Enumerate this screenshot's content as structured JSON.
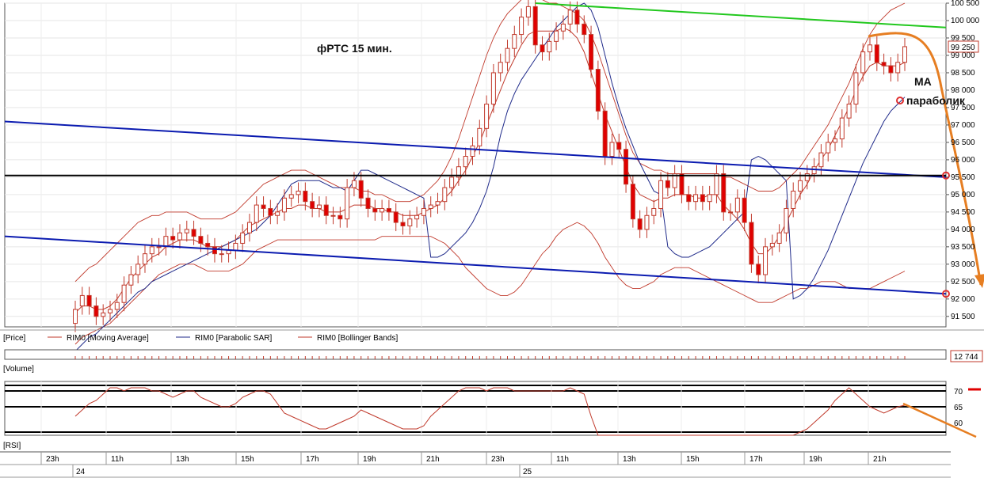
{
  "colors": {
    "up_candle": "#ffffff",
    "down_candle": "#e00000",
    "moving_average": "#c0392b",
    "parabolic_sar": "#1f2a8a",
    "bollinger": "#c0392b",
    "trend_blue": "#0b1bb0",
    "trend_green": "#22c81e",
    "forecast": "#e67e22",
    "level_line": "#000000",
    "rsi_line": "#c0392b"
  },
  "panels": {
    "price_label": "[Price]",
    "volume_label": "[Volume]",
    "rsi_label": "[RSI]",
    "volume_value": "12 744"
  },
  "legend": [
    {
      "label": "RIM0 [Moving Average]",
      "icon": "red-line-icon"
    },
    {
      "label": "RIM0 [Parabolic SAR]",
      "icon": "blue-line-icon"
    },
    {
      "label": "RIM0 [Bollinger Bands]",
      "icon": "red-line-icon"
    }
  ],
  "annotations": {
    "title": "фРТС  15 мин.",
    "ma": "MA",
    "parabolic": "параболик"
  },
  "time_axis": {
    "hours": [
      "23h",
      "11h",
      "13h",
      "15h",
      "17h",
      "19h",
      "21h",
      "23h",
      "11h",
      "13h",
      "15h",
      "17h",
      "19h",
      "21h"
    ],
    "days": [
      "24",
      "25"
    ]
  },
  "chart_data": [
    {
      "type": "candlestick",
      "name": "price",
      "ylim": [
        91200,
        100500
      ],
      "y_ticks": [
        91500,
        92000,
        92500,
        93000,
        93500,
        94000,
        94500,
        95000,
        95500,
        96000,
        96500,
        97000,
        97500,
        98000,
        98500,
        99000,
        99500,
        100000,
        100500
      ],
      "y_tick_labels": [
        "91 500",
        "92 000",
        "92 500",
        "93 000",
        "93 500",
        "94 000",
        "94 500",
        "95 000",
        "95 500",
        "96 000",
        "96 500",
        "97 000",
        "97 500",
        "98 000",
        "98 500",
        "99 000",
        "99 500",
        "100 000",
        "100 500"
      ],
      "last_price": 99250,
      "last_price_label": "99 250",
      "closes": [
        91700,
        92100,
        91800,
        91500,
        91600,
        91700,
        91900,
        92400,
        92700,
        93000,
        93300,
        93500,
        93500,
        93800,
        93700,
        93900,
        94000,
        93800,
        93600,
        93500,
        93300,
        93300,
        93400,
        93600,
        93900,
        94200,
        94700,
        94600,
        94400,
        94500,
        94900,
        95000,
        95100,
        94800,
        94600,
        94700,
        94400,
        94400,
        94300,
        95200,
        95400,
        94900,
        94600,
        94500,
        94600,
        94500,
        94200,
        94100,
        94300,
        94400,
        94600,
        94700,
        94800,
        95200,
        95500,
        95800,
        96100,
        96400,
        96900,
        97600,
        98500,
        98800,
        99200,
        99600,
        100100,
        100400,
        99300,
        99100,
        99400,
        99700,
        99900,
        100300,
        99900,
        99600,
        98600,
        97400,
        96100,
        96500,
        96300,
        95300,
        94300,
        94000,
        94400,
        94600,
        95400,
        95200,
        95600,
        95000,
        94800,
        95000,
        94800,
        95000,
        95600,
        94500,
        94500,
        94900,
        94200,
        93000,
        92700,
        93500,
        93600,
        93900,
        94600,
        95100,
        95400,
        95600,
        95800,
        96200,
        96500,
        96600,
        97200,
        97600,
        98500,
        99100,
        99300,
        98800,
        98700,
        98500,
        98800,
        99250
      ],
      "opens": [
        91300,
        91800,
        92100,
        91800,
        91500,
        91600,
        91700,
        91900,
        92400,
        92700,
        93000,
        93300,
        93500,
        93500,
        93800,
        93700,
        93900,
        94000,
        93800,
        93600,
        93500,
        93300,
        93300,
        93400,
        93600,
        93900,
        94200,
        94700,
        94600,
        94400,
        94500,
        94900,
        95000,
        95100,
        94800,
        94600,
        94700,
        94400,
        94400,
        94300,
        95200,
        95400,
        94900,
        94600,
        94500,
        94600,
        94500,
        94200,
        94100,
        94300,
        94400,
        94600,
        94700,
        94800,
        95200,
        95500,
        95800,
        96100,
        96400,
        96900,
        97600,
        98500,
        98800,
        99200,
        99600,
        100100,
        100400,
        99300,
        99100,
        99400,
        99700,
        99900,
        100300,
        99900,
        99600,
        98600,
        97400,
        96100,
        96500,
        96300,
        95300,
        94300,
        94000,
        94400,
        94600,
        95400,
        95200,
        95600,
        95000,
        94800,
        95000,
        94800,
        95000,
        95600,
        94500,
        94500,
        94900,
        94200,
        93000,
        92700,
        93500,
        93600,
        93900,
        94600,
        95100,
        95400,
        95600,
        95800,
        96200,
        96500,
        96600,
        97200,
        97600,
        98500,
        99100,
        99300,
        98800,
        98700,
        98500,
        98800
      ],
      "moving_average": [
        91600,
        91800,
        91800,
        91700,
        91700,
        91800,
        92000,
        92300,
        92600,
        92800,
        93000,
        93200,
        93300,
        93500,
        93600,
        93700,
        93700,
        93700,
        93600,
        93500,
        93500,
        93500,
        93600,
        93700,
        93900,
        94100,
        94200,
        94300,
        94400,
        94500,
        94600,
        94600,
        94700,
        94700,
        94600,
        94600,
        94500,
        94500,
        94500,
        94600,
        94700,
        94700,
        94700,
        94600,
        94600,
        94500,
        94500,
        94400,
        94400,
        94400,
        94500,
        94600,
        94700,
        94900,
        95100,
        95400,
        95700,
        96100,
        96500,
        97000,
        97500,
        98000,
        98500,
        98900,
        99300,
        99600,
        99700,
        99700,
        99700,
        99700,
        99800,
        99700,
        99500,
        99100,
        98500,
        97900,
        97300,
        96800,
        96300,
        95800,
        95300,
        95000,
        94900,
        94800,
        94900,
        94900,
        95000,
        95000,
        95000,
        94900,
        94900,
        95000,
        95000,
        94700,
        94500,
        94300,
        94000,
        93600,
        93300,
        93300,
        93500,
        93800,
        94200,
        94600,
        95000,
        95300,
        95700,
        96000,
        96300,
        96700,
        97100,
        97500,
        98000,
        98400,
        98700,
        98800,
        98700,
        98700,
        98700,
        98800
      ],
      "parabolic_sar": [
        90500,
        90700,
        90900,
        91000,
        91200,
        91400,
        91600,
        91800,
        92000,
        92200,
        92300,
        92500,
        92600,
        92700,
        92800,
        92900,
        93000,
        93100,
        93200,
        93300,
        93400,
        93500,
        93600,
        93700,
        93800,
        93900,
        94000,
        94200,
        94400,
        94700,
        95000,
        95300,
        95400,
        95400,
        95400,
        95400,
        95300,
        95200,
        95200,
        95100,
        95400,
        95700,
        95700,
        95600,
        95500,
        95400,
        95300,
        95200,
        95100,
        95000,
        94900,
        93200,
        93200,
        93300,
        93500,
        93700,
        93900,
        94200,
        94600,
        95100,
        95800,
        96700,
        97400,
        97900,
        98300,
        98600,
        98900,
        99200,
        99500,
        99800,
        100000,
        100200,
        100400,
        100500,
        100300,
        99800,
        99000,
        98200,
        97500,
        96900,
        96400,
        95900,
        95500,
        95100,
        95000,
        93500,
        93300,
        93200,
        93200,
        93300,
        93400,
        93500,
        93700,
        93900,
        94100,
        94300,
        94500,
        96000,
        96100,
        96000,
        95800,
        95600,
        95400,
        92000,
        92100,
        92300,
        92600,
        93000,
        93400,
        93900,
        94400,
        94900,
        95400,
        95900,
        96300,
        96700,
        97100,
        97400,
        97600,
        97800
      ],
      "bollinger_upper": [
        92500,
        92700,
        92900,
        93000,
        93200,
        93400,
        93600,
        93800,
        94000,
        94200,
        94300,
        94400,
        94400,
        94500,
        94500,
        94500,
        94500,
        94400,
        94300,
        94300,
        94300,
        94300,
        94400,
        94500,
        94700,
        94900,
        95100,
        95300,
        95400,
        95500,
        95600,
        95700,
        95700,
        95700,
        95600,
        95500,
        95400,
        95300,
        95200,
        95200,
        95200,
        95100,
        95100,
        95000,
        95000,
        94900,
        94800,
        94800,
        94800,
        94900,
        95000,
        95200,
        95400,
        95700,
        96100,
        96600,
        97200,
        97800,
        98400,
        99000,
        99500,
        99900,
        100200,
        100400,
        100600,
        100700,
        100700,
        100600,
        100500,
        100500,
        100400,
        100300,
        100200,
        100000,
        99600,
        99100,
        98500,
        97900,
        97300,
        96700,
        96200,
        95900,
        95800,
        95700,
        95700,
        95600,
        95600,
        95600,
        95600,
        95600,
        95600,
        95600,
        95600,
        95500,
        95500,
        95400,
        95300,
        95200,
        95100,
        95100,
        95100,
        95200,
        95400,
        95600,
        95800,
        96100,
        96400,
        96700,
        97000,
        97400,
        97800,
        98200,
        98700,
        99200,
        99600,
        99900,
        100100,
        100300,
        100400,
        100500
      ],
      "bollinger_lower": [
        90700,
        90900,
        91000,
        91100,
        91200,
        91300,
        91500,
        91700,
        91900,
        92100,
        92300,
        92500,
        92700,
        92800,
        92900,
        93000,
        93000,
        93000,
        92900,
        92800,
        92800,
        92800,
        92800,
        92900,
        93000,
        93200,
        93400,
        93500,
        93600,
        93700,
        93700,
        93700,
        93700,
        93700,
        93700,
        93700,
        93700,
        93700,
        93700,
        93700,
        93700,
        93700,
        93700,
        93700,
        93800,
        93800,
        93800,
        93800,
        93800,
        93800,
        93800,
        93800,
        93700,
        93600,
        93400,
        93200,
        92900,
        92700,
        92500,
        92300,
        92200,
        92100,
        92100,
        92200,
        92400,
        92700,
        93000,
        93300,
        93500,
        93800,
        94000,
        94100,
        94200,
        94100,
        93900,
        93600,
        93200,
        92900,
        92600,
        92400,
        92300,
        92300,
        92400,
        92500,
        92700,
        92800,
        92900,
        92900,
        92900,
        92800,
        92700,
        92600,
        92500,
        92400,
        92300,
        92200,
        92100,
        92000,
        91900,
        91900,
        91900,
        92000,
        92100,
        92200,
        92300,
        92300,
        92400,
        92500,
        92500,
        92500,
        92400,
        92300,
        92300,
        92300,
        92300,
        92400,
        92500,
        92600,
        92700,
        92800
      ],
      "trend_lines": [
        {
          "name": "upper blue trend",
          "from": [
            0,
            97100
          ],
          "to": [
            119,
            95500
          ]
        },
        {
          "name": "lower blue trend",
          "from": [
            0,
            93800
          ],
          "to": [
            119,
            92150
          ]
        },
        {
          "name": "green resistance",
          "from": [
            66,
            100500
          ],
          "to": [
            119,
            99800
          ]
        },
        {
          "name": "horizontal level",
          "from": [
            0,
            95550
          ],
          "to": [
            119,
            95550
          ]
        }
      ]
    },
    {
      "type": "line",
      "name": "RSI",
      "ylim": [
        56,
        73
      ],
      "y_ticks": [
        60,
        65,
        70
      ],
      "levels": [
        57,
        65,
        70
      ],
      "values": [
        62,
        64,
        66,
        67,
        69,
        71,
        71,
        70,
        71,
        71,
        71,
        70,
        70,
        69,
        68,
        69,
        70,
        70,
        68,
        67,
        66,
        65,
        65,
        66,
        68,
        69,
        70,
        70,
        69,
        66,
        63,
        62,
        61,
        60,
        59,
        58,
        58,
        59,
        60,
        61,
        62,
        64,
        63,
        62,
        61,
        60,
        59,
        58,
        58,
        58,
        59,
        62,
        64,
        66,
        68,
        70,
        71,
        71,
        71,
        70,
        71,
        71,
        71,
        70,
        70,
        70,
        70,
        70,
        70,
        70,
        70,
        71,
        70,
        69,
        62,
        56,
        56,
        56,
        56,
        56,
        56,
        56,
        56,
        56,
        56,
        56,
        56,
        56,
        56,
        56,
        56,
        56,
        56,
        56,
        56,
        56,
        56,
        56,
        56,
        56,
        56,
        56,
        56,
        56,
        57,
        58,
        60,
        62,
        64,
        67,
        69,
        71,
        69,
        67,
        65,
        64,
        63,
        64,
        65,
        65.5
      ]
    }
  ]
}
